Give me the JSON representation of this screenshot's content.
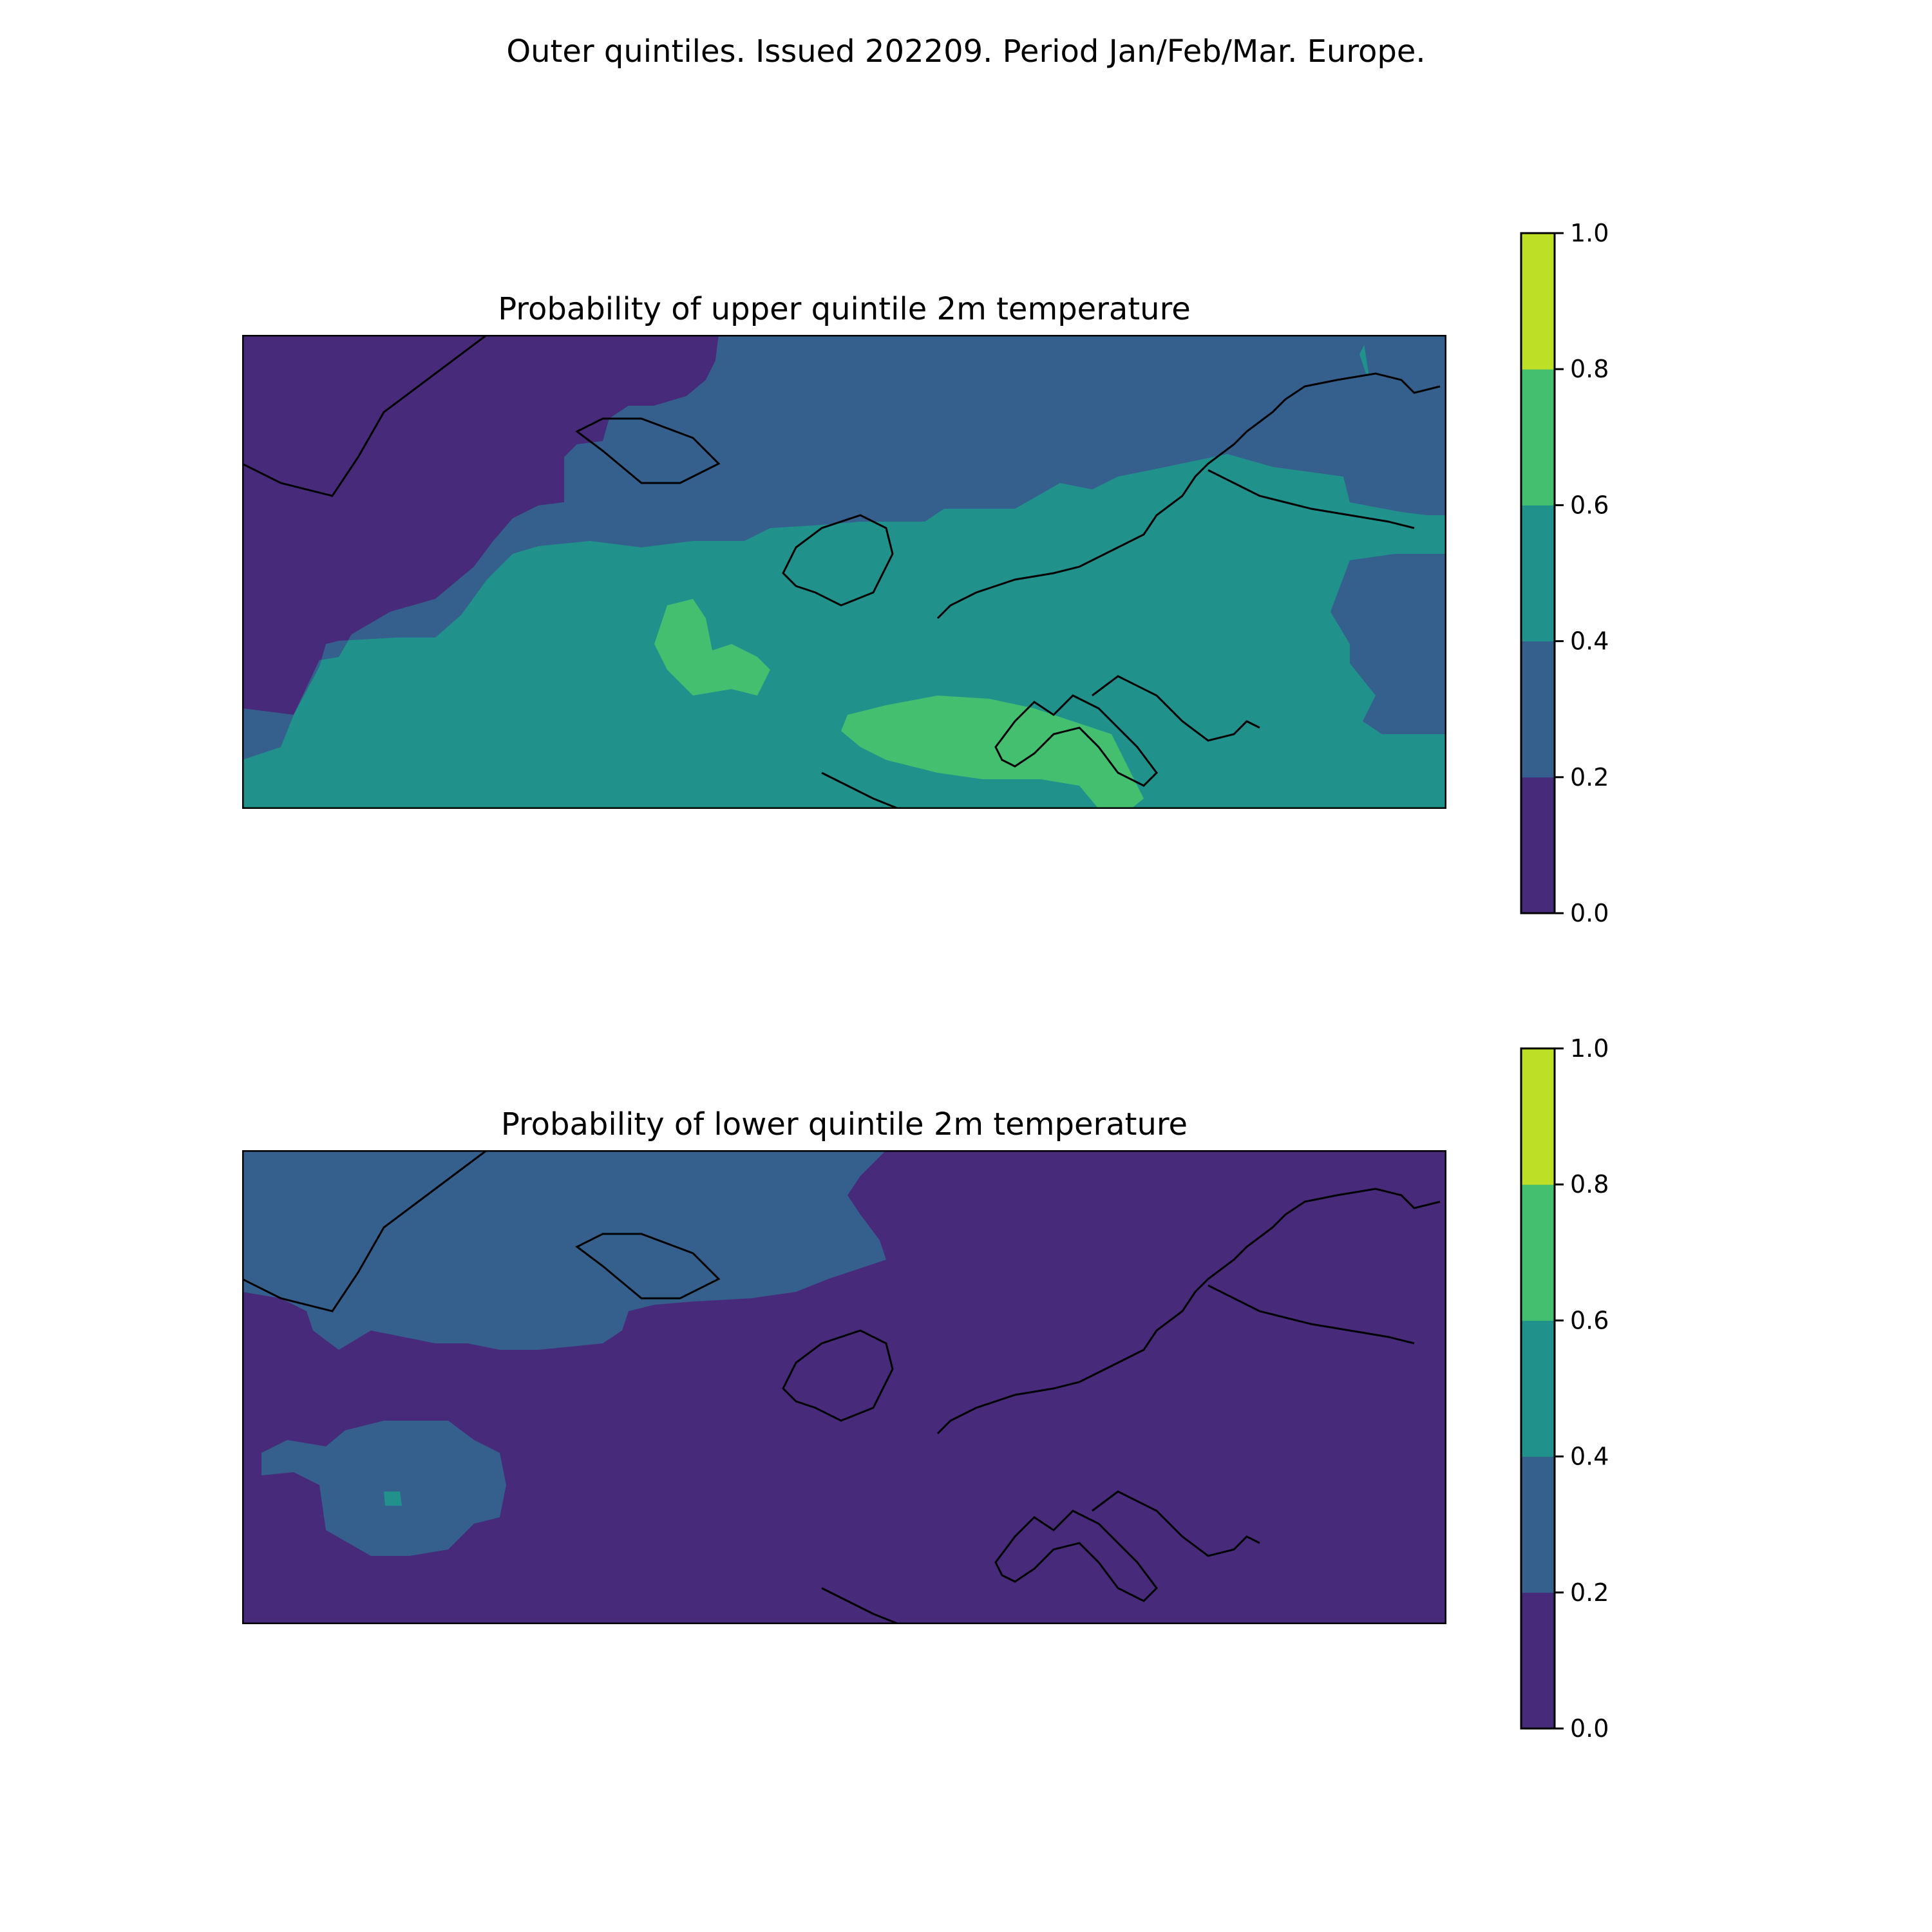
{
  "suptitle": "Outer quintiles. Issued 202209. Period Jan/Feb/Mar. Europe.",
  "colorbar": {
    "levels": [
      0.0,
      0.2,
      0.4,
      0.6,
      0.8,
      1.0
    ],
    "tick_labels": [
      "0.0",
      "0.2",
      "0.4",
      "0.6",
      "0.8",
      "1.0"
    ],
    "colors": [
      "#472a7a",
      "#355f8d",
      "#21918c",
      "#44bf70",
      "#bddf26"
    ]
  },
  "panels": [
    {
      "title": "Probability of upper quintile 2m temperature",
      "background_color": "#21918c",
      "regions": [
        {
          "name": "greenland-iceland-cold",
          "color": "#472a7a"
        },
        {
          "name": "north-atlantic-medium",
          "color": "#355f8d"
        },
        {
          "name": "russia-north-medium",
          "color": "#355f8d"
        },
        {
          "name": "black-sea-medium",
          "color": "#355f8d"
        },
        {
          "name": "mediterranean-warm",
          "color": "#44bf70"
        },
        {
          "name": "atlantic-warm-patch",
          "color": "#44bf70"
        }
      ]
    },
    {
      "title": "Probability of lower quintile 2m temperature",
      "background_color": "#472a7a",
      "regions": [
        {
          "name": "greenland-iceland-medium",
          "color": "#355f8d"
        },
        {
          "name": "mid-atlantic-medium",
          "color": "#355f8d"
        },
        {
          "name": "mid-atlantic-spot",
          "color": "#21918c"
        }
      ]
    }
  ]
}
